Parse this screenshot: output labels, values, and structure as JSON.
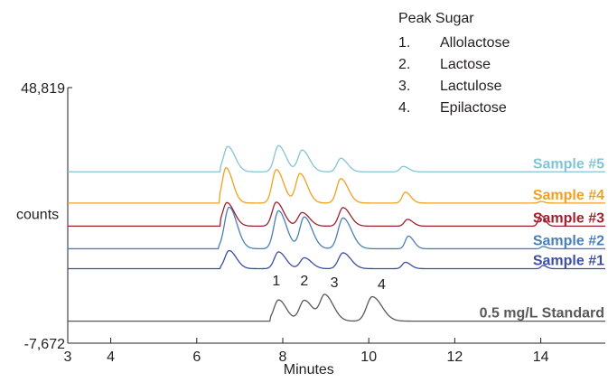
{
  "chart_data": {
    "type": "line",
    "xlabel": "Minutes",
    "ylabel": "counts",
    "xlim": [
      3,
      15.5
    ],
    "ylim": [
      -7672,
      48819
    ],
    "x_ticks": [
      3,
      4,
      6,
      8,
      10,
      12,
      14
    ],
    "y_ticks": [
      {
        "value": 48819,
        "label": "48,819"
      },
      {
        "value": -7672,
        "label": "-7,672"
      }
    ],
    "legend": {
      "title": "Peak Sugar",
      "entries": [
        {
          "num": "1.",
          "name": "Allolactose"
        },
        {
          "num": "2.",
          "name": "Lactose"
        },
        {
          "num": "3.",
          "name": "Lactulose"
        },
        {
          "num": "4.",
          "name": "Epilactose"
        }
      ]
    },
    "peak_labels": [
      {
        "label": "1",
        "x": 7.85
      },
      {
        "label": "2",
        "x": 8.5
      },
      {
        "label": "3",
        "x": 9.2
      },
      {
        "label": "4",
        "x": 10.3
      }
    ],
    "series": [
      {
        "name": "0.5 mg/L Standard",
        "color": "#595959",
        "baseline": -2800,
        "onset": 7.7,
        "peaks": [
          {
            "x": 7.9,
            "h": 4700,
            "w": 0.13
          },
          {
            "x": 8.5,
            "h": 4600,
            "w": 0.14
          },
          {
            "x": 8.98,
            "h": 5700,
            "w": 0.14
          },
          {
            "x": 10.08,
            "h": 5400,
            "w": 0.16
          }
        ]
      },
      {
        "name": "Sample #1",
        "color": "#3d4f9f",
        "baseline": 8800,
        "onset": 6.55,
        "peaks": [
          {
            "x": 6.75,
            "h": 4000,
            "w": 0.12
          },
          {
            "x": 7.9,
            "h": 3700,
            "w": 0.12
          },
          {
            "x": 8.5,
            "h": 2400,
            "w": 0.12
          },
          {
            "x": 9.4,
            "h": 3500,
            "w": 0.13
          },
          {
            "x": 10.85,
            "h": 1400,
            "w": 0.09
          },
          {
            "x": 14.05,
            "h": 700,
            "w": 0.06
          }
        ]
      },
      {
        "name": "Sample #2",
        "color": "#4a7fb5",
        "baseline": 13200,
        "onset": 6.5,
        "peaks": [
          {
            "x": 6.75,
            "h": 9200,
            "w": 0.13
          },
          {
            "x": 7.9,
            "h": 8400,
            "w": 0.13
          },
          {
            "x": 8.5,
            "h": 7000,
            "w": 0.13
          },
          {
            "x": 9.4,
            "h": 6800,
            "w": 0.14
          },
          {
            "x": 10.92,
            "h": 2800,
            "w": 0.09
          },
          {
            "x": 14.05,
            "h": 500,
            "w": 0.06
          }
        ]
      },
      {
        "name": "Sample #3",
        "color": "#a3202e",
        "baseline": 18200,
        "onset": 6.55,
        "peaks": [
          {
            "x": 6.7,
            "h": 5200,
            "w": 0.12
          },
          {
            "x": 7.85,
            "h": 5300,
            "w": 0.12
          },
          {
            "x": 8.45,
            "h": 3000,
            "w": 0.12
          },
          {
            "x": 9.4,
            "h": 4100,
            "w": 0.12
          },
          {
            "x": 10.9,
            "h": 1500,
            "w": 0.09
          },
          {
            "x": 14.0,
            "h": 2400,
            "w": 0.07
          }
        ]
      },
      {
        "name": "Sample #4",
        "color": "#f0a11e",
        "baseline": 23300,
        "onset": 6.52,
        "peaks": [
          {
            "x": 6.68,
            "h": 7800,
            "w": 0.11
          },
          {
            "x": 7.85,
            "h": 7400,
            "w": 0.12
          },
          {
            "x": 8.4,
            "h": 6500,
            "w": 0.12
          },
          {
            "x": 9.35,
            "h": 5400,
            "w": 0.12
          },
          {
            "x": 10.85,
            "h": 2400,
            "w": 0.09
          },
          {
            "x": 14.0,
            "h": 350,
            "w": 0.06
          }
        ]
      },
      {
        "name": "Sample #5",
        "color": "#82c5d6",
        "baseline": 30200,
        "onset": 6.55,
        "peaks": [
          {
            "x": 6.72,
            "h": 5600,
            "w": 0.12
          },
          {
            "x": 7.9,
            "h": 5800,
            "w": 0.12
          },
          {
            "x": 8.45,
            "h": 4800,
            "w": 0.12
          },
          {
            "x": 9.35,
            "h": 3000,
            "w": 0.11
          },
          {
            "x": 10.8,
            "h": 1200,
            "w": 0.09
          }
        ]
      }
    ]
  }
}
